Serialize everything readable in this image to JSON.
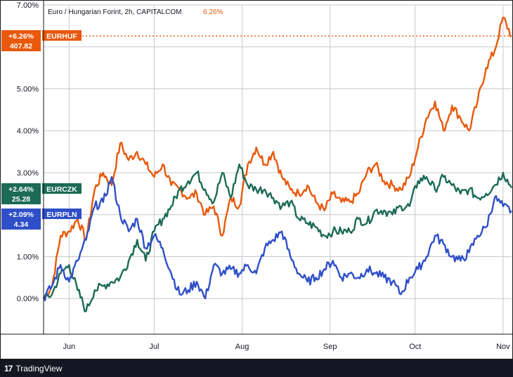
{
  "header": {
    "symbol_title": "Euro / Hungarian Forint, 2h, CAPITALCOM",
    "symbol_change": "6.26%",
    "symbol_change_color": "#e8590c"
  },
  "footer": {
    "brand": "TradingView",
    "brand_mark": "17"
  },
  "colors": {
    "eurhuf": "#e8590c",
    "eurczk": "#1b6b55",
    "eurpln": "#2f4fc8",
    "grid": "#c7c9cf",
    "border": "#1a1a1a"
  },
  "price_labels": [
    {
      "id": "eurhuf",
      "change": "+6.26%",
      "ticker": "EURHUF",
      "price": "407.82"
    },
    {
      "id": "eurczk",
      "change": "+2.64%",
      "ticker": "EURCZK",
      "price": "25.28"
    },
    {
      "id": "eurpln",
      "change": "+2.09%",
      "ticker": "EURPLN",
      "price": "4.34"
    }
  ],
  "chart_data": {
    "type": "line",
    "title": "Euro / Hungarian Forint, 2h, CAPITALCOM",
    "xlabel": "",
    "ylabel": "",
    "y_unit": "%",
    "ylim": [
      -0.85,
      7.0
    ],
    "xlim": [
      "2022-05-23",
      "2022-11-04"
    ],
    "grid": true,
    "y_ticks": [
      "0.00%",
      "1.00%",
      "2.00%",
      "3.00%",
      "4.00%",
      "5.00%",
      "6.00%",
      "7.00%"
    ],
    "y_tick_values": [
      0,
      1,
      2,
      3,
      4,
      5,
      6,
      7
    ],
    "x_ticks": [
      "Jun",
      "Jul",
      "Aug",
      "Sep",
      "Oct",
      "Nov"
    ],
    "x_tick_dates": [
      "2022-06-01",
      "2022-07-01",
      "2022-08-01",
      "2022-09-01",
      "2022-10-01",
      "2022-11-01"
    ],
    "series": [
      {
        "name": "EURHUF",
        "color": "#e8590c",
        "last_value": 6.26,
        "points": [
          [
            "2022-05-23",
            0.0
          ],
          [
            "2022-05-26",
            0.3
          ],
          [
            "2022-05-29",
            1.5
          ],
          [
            "2022-06-01",
            1.6
          ],
          [
            "2022-06-04",
            1.9
          ],
          [
            "2022-06-07",
            1.4
          ],
          [
            "2022-06-10",
            2.6
          ],
          [
            "2022-06-13",
            3.0
          ],
          [
            "2022-06-16",
            2.7
          ],
          [
            "2022-06-19",
            3.7
          ],
          [
            "2022-06-22",
            3.3
          ],
          [
            "2022-06-25",
            3.5
          ],
          [
            "2022-06-28",
            3.2
          ],
          [
            "2022-07-01",
            2.9
          ],
          [
            "2022-07-04",
            3.2
          ],
          [
            "2022-07-07",
            2.7
          ],
          [
            "2022-07-10",
            2.6
          ],
          [
            "2022-07-13",
            2.4
          ],
          [
            "2022-07-16",
            2.5
          ],
          [
            "2022-07-19",
            2.0
          ],
          [
            "2022-07-22",
            2.2
          ],
          [
            "2022-07-25",
            1.5
          ],
          [
            "2022-07-28",
            2.4
          ],
          [
            "2022-07-31",
            2.2
          ],
          [
            "2022-08-03",
            3.2
          ],
          [
            "2022-08-06",
            3.6
          ],
          [
            "2022-08-09",
            3.2
          ],
          [
            "2022-08-12",
            3.5
          ],
          [
            "2022-08-15",
            2.9
          ],
          [
            "2022-08-18",
            2.6
          ],
          [
            "2022-08-21",
            2.5
          ],
          [
            "2022-08-24",
            2.7
          ],
          [
            "2022-08-27",
            2.3
          ],
          [
            "2022-08-30",
            2.1
          ],
          [
            "2022-09-02",
            2.5
          ],
          [
            "2022-09-05",
            2.3
          ],
          [
            "2022-09-08",
            2.3
          ],
          [
            "2022-09-11",
            2.5
          ],
          [
            "2022-09-14",
            3.0
          ],
          [
            "2022-09-17",
            3.2
          ],
          [
            "2022-09-20",
            2.8
          ],
          [
            "2022-09-23",
            2.7
          ],
          [
            "2022-09-26",
            2.6
          ],
          [
            "2022-09-29",
            2.9
          ],
          [
            "2022-10-02",
            3.6
          ],
          [
            "2022-10-05",
            4.3
          ],
          [
            "2022-10-08",
            4.7
          ],
          [
            "2022-10-11",
            4.0
          ],
          [
            "2022-10-14",
            4.6
          ],
          [
            "2022-10-17",
            4.3
          ],
          [
            "2022-10-20",
            4.0
          ],
          [
            "2022-10-23",
            4.7
          ],
          [
            "2022-10-26",
            5.5
          ],
          [
            "2022-10-29",
            5.9
          ],
          [
            "2022-11-01",
            6.7
          ],
          [
            "2022-11-04",
            6.26
          ]
        ]
      },
      {
        "name": "EURCZK",
        "color": "#1b6b55",
        "last_value": 2.64,
        "points": [
          [
            "2022-05-23",
            0.0
          ],
          [
            "2022-05-26",
            0.1
          ],
          [
            "2022-05-29",
            0.6
          ],
          [
            "2022-06-01",
            0.8
          ],
          [
            "2022-06-04",
            0.2
          ],
          [
            "2022-06-07",
            -0.3
          ],
          [
            "2022-06-10",
            0.2
          ],
          [
            "2022-06-13",
            0.3
          ],
          [
            "2022-06-16",
            0.4
          ],
          [
            "2022-06-19",
            0.5
          ],
          [
            "2022-06-22",
            0.9
          ],
          [
            "2022-06-25",
            1.4
          ],
          [
            "2022-06-28",
            0.9
          ],
          [
            "2022-07-01",
            1.6
          ],
          [
            "2022-07-04",
            1.9
          ],
          [
            "2022-07-07",
            2.2
          ],
          [
            "2022-07-10",
            2.6
          ],
          [
            "2022-07-13",
            2.8
          ],
          [
            "2022-07-16",
            3.0
          ],
          [
            "2022-07-19",
            2.6
          ],
          [
            "2022-07-22",
            2.3
          ],
          [
            "2022-07-25",
            3.0
          ],
          [
            "2022-07-28",
            2.4
          ],
          [
            "2022-07-31",
            3.2
          ],
          [
            "2022-08-03",
            2.7
          ],
          [
            "2022-08-06",
            2.6
          ],
          [
            "2022-08-09",
            2.6
          ],
          [
            "2022-08-12",
            2.4
          ],
          [
            "2022-08-15",
            2.2
          ],
          [
            "2022-08-18",
            2.3
          ],
          [
            "2022-08-21",
            1.9
          ],
          [
            "2022-08-24",
            1.8
          ],
          [
            "2022-08-27",
            1.7
          ],
          [
            "2022-08-30",
            1.5
          ],
          [
            "2022-09-02",
            1.6
          ],
          [
            "2022-09-05",
            1.6
          ],
          [
            "2022-09-08",
            1.6
          ],
          [
            "2022-09-11",
            1.9
          ],
          [
            "2022-09-14",
            1.8
          ],
          [
            "2022-09-17",
            2.1
          ],
          [
            "2022-09-20",
            2.1
          ],
          [
            "2022-09-23",
            2.0
          ],
          [
            "2022-09-26",
            2.2
          ],
          [
            "2022-09-29",
            2.2
          ],
          [
            "2022-10-02",
            2.8
          ],
          [
            "2022-10-05",
            2.9
          ],
          [
            "2022-10-08",
            2.6
          ],
          [
            "2022-10-11",
            2.9
          ],
          [
            "2022-10-14",
            2.7
          ],
          [
            "2022-10-17",
            2.5
          ],
          [
            "2022-10-20",
            2.6
          ],
          [
            "2022-10-23",
            2.4
          ],
          [
            "2022-10-26",
            2.5
          ],
          [
            "2022-10-29",
            2.7
          ],
          [
            "2022-11-01",
            3.0
          ],
          [
            "2022-11-04",
            2.64
          ]
        ]
      },
      {
        "name": "EURPLN",
        "color": "#2f4fc8",
        "last_value": 2.09,
        "points": [
          [
            "2022-05-23",
            0.0
          ],
          [
            "2022-05-26",
            0.3
          ],
          [
            "2022-05-29",
            0.8
          ],
          [
            "2022-06-01",
            0.4
          ],
          [
            "2022-06-04",
            0.9
          ],
          [
            "2022-06-07",
            1.4
          ],
          [
            "2022-06-10",
            2.2
          ],
          [
            "2022-06-13",
            2.3
          ],
          [
            "2022-06-16",
            2.9
          ],
          [
            "2022-06-19",
            2.0
          ],
          [
            "2022-06-22",
            1.6
          ],
          [
            "2022-06-25",
            1.9
          ],
          [
            "2022-06-28",
            1.2
          ],
          [
            "2022-07-01",
            1.5
          ],
          [
            "2022-07-04",
            1.2
          ],
          [
            "2022-07-07",
            0.6
          ],
          [
            "2022-07-10",
            0.1
          ],
          [
            "2022-07-13",
            0.2
          ],
          [
            "2022-07-16",
            0.4
          ],
          [
            "2022-07-19",
            0.0
          ],
          [
            "2022-07-22",
            0.8
          ],
          [
            "2022-07-25",
            0.6
          ],
          [
            "2022-07-28",
            0.7
          ],
          [
            "2022-07-31",
            0.6
          ],
          [
            "2022-08-03",
            0.8
          ],
          [
            "2022-08-06",
            0.6
          ],
          [
            "2022-08-09",
            1.2
          ],
          [
            "2022-08-12",
            1.4
          ],
          [
            "2022-08-15",
            1.6
          ],
          [
            "2022-08-18",
            1.0
          ],
          [
            "2022-08-21",
            0.6
          ],
          [
            "2022-08-24",
            0.4
          ],
          [
            "2022-08-27",
            0.5
          ],
          [
            "2022-08-30",
            0.7
          ],
          [
            "2022-09-02",
            0.9
          ],
          [
            "2022-09-05",
            0.5
          ],
          [
            "2022-09-08",
            0.6
          ],
          [
            "2022-09-11",
            0.5
          ],
          [
            "2022-09-14",
            0.7
          ],
          [
            "2022-09-17",
            0.6
          ],
          [
            "2022-09-20",
            0.5
          ],
          [
            "2022-09-23",
            0.4
          ],
          [
            "2022-09-26",
            0.1
          ],
          [
            "2022-09-29",
            0.5
          ],
          [
            "2022-10-02",
            0.7
          ],
          [
            "2022-10-05",
            1.0
          ],
          [
            "2022-10-08",
            1.5
          ],
          [
            "2022-10-11",
            1.3
          ],
          [
            "2022-10-14",
            1.0
          ],
          [
            "2022-10-17",
            0.9
          ],
          [
            "2022-10-20",
            1.1
          ],
          [
            "2022-10-23",
            1.5
          ],
          [
            "2022-10-26",
            1.7
          ],
          [
            "2022-10-29",
            2.4
          ],
          [
            "2022-11-01",
            2.2
          ],
          [
            "2022-11-04",
            2.09
          ]
        ]
      }
    ]
  }
}
